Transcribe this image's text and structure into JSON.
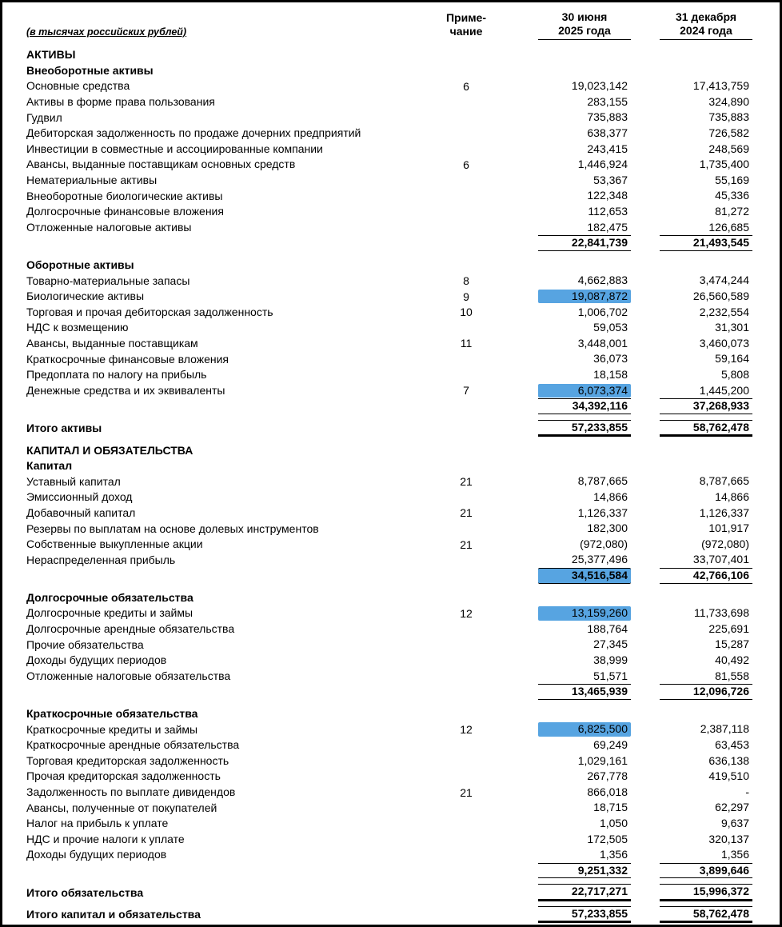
{
  "page": {
    "currency_note": "(в тысячах российских рублей)",
    "highlight_color": "#57a4e1",
    "headers": {
      "note_line1": "Приме-",
      "note_line2": "чание",
      "col1_line1": "30 июня",
      "col1_line2": "2025 года",
      "col2_line1": "31 декабря",
      "col2_line2": "2024 года"
    }
  },
  "rows": [
    {
      "type": "section",
      "label": "АКТИВЫ"
    },
    {
      "type": "subsection",
      "label": "Внеоборотные активы"
    },
    {
      "type": "item",
      "label": "Основные средства",
      "note": "6",
      "v1": "19,023,142",
      "v2": "17,413,759"
    },
    {
      "type": "item",
      "label": "Активы в форме права пользования",
      "v1": "283,155",
      "v2": "324,890"
    },
    {
      "type": "item",
      "label": "Гудвил",
      "v1": "735,883",
      "v2": "735,883"
    },
    {
      "type": "item",
      "label": "Дебиторская задолженность по продаже дочерних предприятий",
      "v1": "638,377",
      "v2": "726,582"
    },
    {
      "type": "item",
      "label": "Инвестиции в совместные и ассоциированные компании",
      "v1": "243,415",
      "v2": "248,569"
    },
    {
      "type": "item",
      "label": "Авансы, выданные поставщикам основных средств",
      "note": "6",
      "v1": "1,446,924",
      "v2": "1,735,400"
    },
    {
      "type": "item",
      "label": "Нематериальные активы",
      "v1": "53,367",
      "v2": "55,169"
    },
    {
      "type": "item",
      "label": "Внеоборотные биологические активы",
      "v1": "122,348",
      "v2": "45,336"
    },
    {
      "type": "item",
      "label": "Долгосрочные финансовые вложения",
      "v1": "112,653",
      "v2": "81,272"
    },
    {
      "type": "item",
      "label": "Отложенные налоговые активы",
      "v1": "182,475",
      "v2": "126,685"
    },
    {
      "type": "subtotal",
      "v1": "22,841,739",
      "v2": "21,493,545"
    },
    {
      "type": "spacer"
    },
    {
      "type": "subsection",
      "label": "Оборотные активы"
    },
    {
      "type": "item",
      "label": "Товарно-материальные запасы",
      "note": "8",
      "v1": "4,662,883",
      "v2": "3,474,244"
    },
    {
      "type": "item",
      "label": "Биологические активы",
      "note": "9",
      "v1": "19,087,872",
      "v2": "26,560,589",
      "hl1": true
    },
    {
      "type": "item",
      "label": "Торговая и прочая дебиторская задолженность",
      "note": "10",
      "v1": "1,006,702",
      "v2": "2,232,554"
    },
    {
      "type": "item",
      "label": "НДС к возмещению",
      "v1": "59,053",
      "v2": "31,301"
    },
    {
      "type": "item",
      "label": "Авансы, выданные поставщикам",
      "note": "11",
      "v1": "3,448,001",
      "v2": "3,460,073"
    },
    {
      "type": "item",
      "label": "Краткосрочные финансовые вложения",
      "v1": "36,073",
      "v2": "59,164"
    },
    {
      "type": "item",
      "label": "Предоплата по налогу на прибыль",
      "v1": "18,158",
      "v2": "5,808"
    },
    {
      "type": "item",
      "label": "Денежные средства и их эквиваленты",
      "note": "7",
      "v1": "6,073,374",
      "v2": "1,445,200",
      "hl1": true
    },
    {
      "type": "subtotal",
      "v1": "34,392,116",
      "v2": "37,268,933"
    },
    {
      "type": "spacer"
    },
    {
      "type": "total",
      "label": "Итого активы",
      "v1": "57,233,855",
      "v2": "58,762,478"
    },
    {
      "type": "spacer"
    },
    {
      "type": "section",
      "label": "КАПИТАЛ И ОБЯЗАТЕЛЬСТВА"
    },
    {
      "type": "subsection",
      "label": "Капитал"
    },
    {
      "type": "item",
      "label": "Уставный капитал",
      "note": "21",
      "v1": "8,787,665",
      "v2": "8,787,665"
    },
    {
      "type": "item",
      "label": "Эмиссионный доход",
      "v1": "14,866",
      "v2": "14,866"
    },
    {
      "type": "item",
      "label": "Добавочный капитал",
      "note": "21",
      "v1": "1,126,337",
      "v2": "1,126,337"
    },
    {
      "type": "item",
      "label": "Резервы по выплатам на основе долевых инструментов",
      "v1": "182,300",
      "v2": "101,917"
    },
    {
      "type": "item",
      "label": "Собственные выкупленные акции",
      "note": "21",
      "v1": "(972,080)",
      "v2": "(972,080)"
    },
    {
      "type": "item",
      "label": "Нераспределенная прибыль",
      "v1": "25,377,496",
      "v2": "33,707,401"
    },
    {
      "type": "subtotal",
      "v1": "34,516,584",
      "v2": "42,766,106",
      "hl1": true
    },
    {
      "type": "spacer"
    },
    {
      "type": "subsection",
      "label": "Долгосрочные обязательства"
    },
    {
      "type": "item",
      "label": "Долгосрочные кредиты и займы",
      "note": "12",
      "v1": "13,159,260",
      "v2": "11,733,698",
      "hl1": true
    },
    {
      "type": "item",
      "label": "Долгосрочные арендные обязательства",
      "v1": "188,764",
      "v2": "225,691"
    },
    {
      "type": "item",
      "label": "Прочие обязательства",
      "v1": "27,345",
      "v2": "15,287"
    },
    {
      "type": "item",
      "label": "Доходы будущих периодов",
      "v1": "38,999",
      "v2": "40,492"
    },
    {
      "type": "item",
      "label": "Отложенные налоговые обязательства",
      "v1": "51,571",
      "v2": "81,558"
    },
    {
      "type": "subtotal",
      "v1": "13,465,939",
      "v2": "12,096,726"
    },
    {
      "type": "spacer"
    },
    {
      "type": "subsection",
      "label": "Краткосрочные обязательства"
    },
    {
      "type": "item",
      "label": "Краткосрочные кредиты и займы",
      "note": "12",
      "v1": "6,825,500",
      "v2": "2,387,118",
      "hl1": true
    },
    {
      "type": "item",
      "label": "Краткосрочные арендные обязательства",
      "v1": "69,249",
      "v2": "63,453"
    },
    {
      "type": "item",
      "label": "Торговая кредиторская задолженность",
      "v1": "1,029,161",
      "v2": "636,138"
    },
    {
      "type": "item",
      "label": "Прочая кредиторская задолженность",
      "v1": "267,778",
      "v2": "419,510"
    },
    {
      "type": "item",
      "label": "Задолженность по выплате дивидендов",
      "note": "21",
      "v1": "866,018",
      "v2": "-"
    },
    {
      "type": "item",
      "label": "Авансы, полученные от покупателей",
      "v1": "18,715",
      "v2": "62,297"
    },
    {
      "type": "item",
      "label": "Налог на прибыль к уплате",
      "v1": "1,050",
      "v2": "9,637"
    },
    {
      "type": "item",
      "label": "НДС и прочие налоги к уплате",
      "v1": "172,505",
      "v2": "320,137"
    },
    {
      "type": "item",
      "label": "Доходы будущих периодов",
      "v1": "1,356",
      "v2": "1,356"
    },
    {
      "type": "subtotal",
      "v1": "9,251,332",
      "v2": "3,899,646"
    },
    {
      "type": "spacer"
    },
    {
      "type": "total",
      "label": "Итого обязательства",
      "v1": "22,717,271",
      "v2": "15,996,372"
    },
    {
      "type": "spacer"
    },
    {
      "type": "total",
      "label": "Итого капитал и обязательства",
      "v1": "57,233,855",
      "v2": "58,762,478"
    }
  ]
}
